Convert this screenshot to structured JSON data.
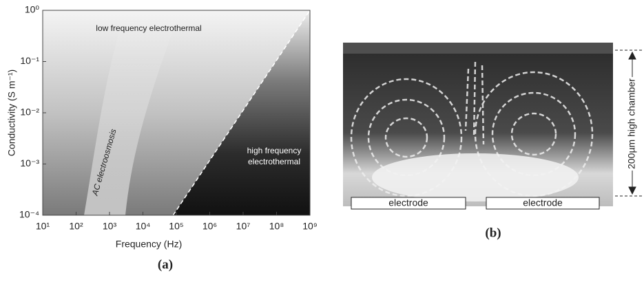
{
  "chart_data": {
    "type": "region-map",
    "xlabel": "Frequency (Hz)",
    "ylabel": "Conductivity (S m⁻¹)",
    "caption": "(a)",
    "xscale": "log",
    "yscale": "log",
    "xlim": [
      10,
      1000000000
    ],
    "ylim": [
      0.0001,
      1
    ],
    "xticks": [
      {
        "value": 10,
        "label": "10¹"
      },
      {
        "value": 100,
        "label": "10²"
      },
      {
        "value": 1000,
        "label": "10³"
      },
      {
        "value": 10000,
        "label": "10⁴"
      },
      {
        "value": 100000,
        "label": "10⁵"
      },
      {
        "value": 1000000,
        "label": "10⁶"
      },
      {
        "value": 10000000,
        "label": "10⁷"
      },
      {
        "value": 100000000,
        "label": "10⁸"
      },
      {
        "value": 1000000000,
        "label": "10⁹"
      }
    ],
    "yticks": [
      {
        "value": 0.0001,
        "label": "10⁻⁴"
      },
      {
        "value": 0.001,
        "label": "10⁻³"
      },
      {
        "value": 0.01,
        "label": "10⁻²"
      },
      {
        "value": 0.1,
        "label": "10⁻¹"
      },
      {
        "value": 1,
        "label": "10⁰"
      }
    ],
    "boundary": {
      "x": [
        80000,
        1000000000
      ],
      "y": [
        0.0001,
        1
      ]
    },
    "regions": {
      "low": "low frequency electrothermal",
      "high": [
        "high frequency",
        "electrothermal"
      ],
      "aceo": "AC electroosmosis"
    }
  },
  "photo": {
    "electrodes": [
      "electrode",
      "electrode"
    ],
    "dimension": "200µm high chamber",
    "caption": "(b)"
  }
}
